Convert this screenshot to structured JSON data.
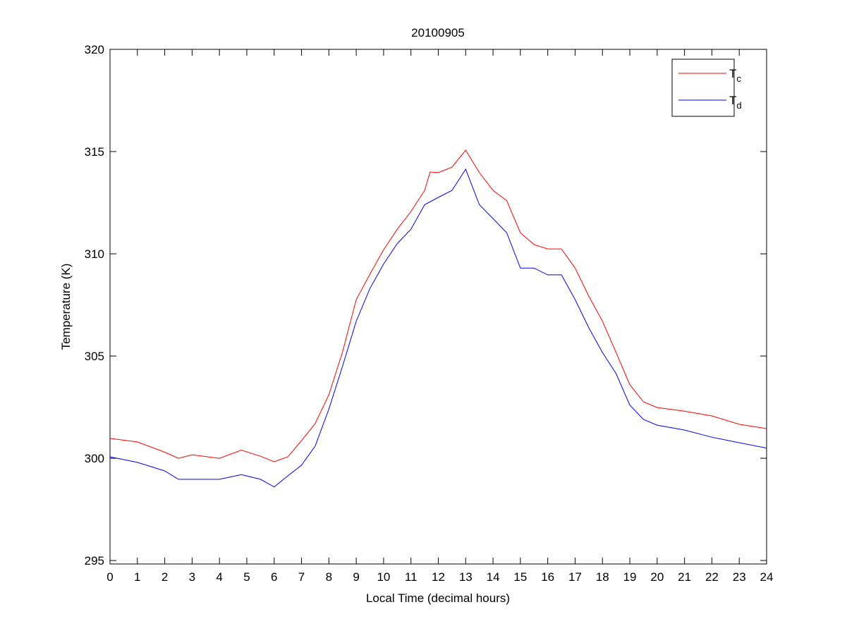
{
  "chart_data": {
    "type": "line",
    "title": "20100905",
    "xlabel": "Local Time (decimal hours)",
    "ylabel": "Temperature (K)",
    "xlim": [
      0,
      24
    ],
    "ylim": [
      294.83,
      320
    ],
    "xticks": [
      0,
      1,
      2,
      3,
      4,
      5,
      6,
      7,
      8,
      9,
      10,
      11,
      12,
      13,
      14,
      15,
      16,
      17,
      18,
      19,
      20,
      21,
      22,
      23,
      24
    ],
    "yticks": [
      295,
      300,
      305,
      310,
      315,
      320
    ],
    "grid": false,
    "legend_position": "top-right",
    "series": [
      {
        "name": "T",
        "subscript": "c",
        "color": "#ff0000",
        "x": [
          0,
          1,
          2,
          2.5,
          3,
          4,
          4.8,
          5.5,
          6,
          6.5,
          7,
          7.5,
          8,
          8.5,
          9,
          9.5,
          10,
          10.5,
          11,
          11.5,
          11.7,
          12,
          12.5,
          13,
          13.5,
          14,
          14.5,
          15,
          15.5,
          16,
          16.5,
          17,
          17.5,
          18,
          18.5,
          19,
          19.5,
          20,
          21,
          22,
          23,
          24
        ],
        "y": [
          300.97,
          300.8,
          300.3,
          300.0,
          300.17,
          300.0,
          300.4,
          300.1,
          299.83,
          300.07,
          300.86,
          301.7,
          303.1,
          305.2,
          307.76,
          309.0,
          310.2,
          311.2,
          312.07,
          313.1,
          314.0,
          313.97,
          314.24,
          315.07,
          313.97,
          313.1,
          312.6,
          311.03,
          310.45,
          310.24,
          310.24,
          309.3,
          307.93,
          306.7,
          305.17,
          303.6,
          302.76,
          302.48,
          302.3,
          302.07,
          301.66,
          301.45
        ]
      },
      {
        "name": "T",
        "subscript": "d",
        "color": "#0000ff",
        "x": [
          0,
          1,
          2,
          2.5,
          3,
          4,
          4.8,
          5.5,
          6,
          6.5,
          7,
          7.5,
          8,
          8.5,
          9,
          9.5,
          10,
          10.5,
          11,
          11.5,
          12,
          12.5,
          13,
          13.5,
          14,
          14.5,
          15,
          15.5,
          16,
          16.5,
          17,
          17.5,
          18,
          18.5,
          19,
          19.5,
          20,
          21,
          22,
          23,
          24
        ],
        "y": [
          300.07,
          299.8,
          299.38,
          298.97,
          298.97,
          298.97,
          299.2,
          298.97,
          298.6,
          299.14,
          299.66,
          300.6,
          302.4,
          304.5,
          306.7,
          308.3,
          309.5,
          310.5,
          311.2,
          312.4,
          312.76,
          313.1,
          314.14,
          312.4,
          311.72,
          311.03,
          309.3,
          309.3,
          308.97,
          308.97,
          307.76,
          306.38,
          305.17,
          304.14,
          302.6,
          301.9,
          301.62,
          301.38,
          301.03,
          300.76,
          300.5
        ]
      }
    ]
  }
}
